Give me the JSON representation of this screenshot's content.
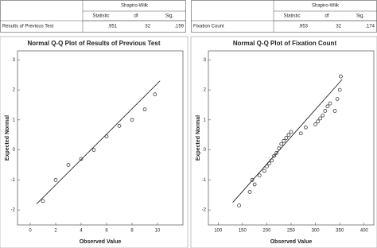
{
  "tables": [
    {
      "group_header": "Shapiro-Wilk",
      "columns": [
        "Statistic",
        "df",
        "Sig."
      ],
      "rows": [
        [
          "Results of Previous Test",
          ".951",
          "32",
          ".159"
        ]
      ]
    },
    {
      "group_header": "Shapiro-Wilk",
      "columns": [
        "Statistic",
        "df",
        "Sig."
      ],
      "rows": [
        [
          "Fixation Count",
          ".953",
          "32",
          ".174"
        ]
      ]
    }
  ],
  "chart_data": [
    {
      "type": "scatter",
      "title": "Normal Q-Q Plot of Results of Previous Test",
      "x_label": "Observed Value",
      "y_label": "Expected Normal",
      "x": [
        1,
        2,
        3,
        4,
        5,
        6,
        7,
        8,
        9,
        9.8
      ],
      "values": [
        -1.7,
        -1.0,
        -0.5,
        -0.3,
        0.0,
        0.45,
        0.8,
        1.0,
        1.35,
        1.85
      ],
      "reference_line": {
        "x": [
          0.5,
          10.2
        ],
        "y": [
          -1.8,
          2.3
        ]
      },
      "xlim": [
        -1,
        12
      ],
      "xticks": [
        0,
        2,
        4,
        6,
        8,
        10
      ],
      "ylim": [
        -2.5,
        3.3
      ],
      "yticks": [
        -2,
        -1,
        0,
        1,
        2,
        3
      ],
      "color": "#222222"
    },
    {
      "type": "scatter",
      "title": "Normal Q-Q Plot of Fixation Count",
      "x_label": "Observed Value",
      "y_label": "Expected Normal",
      "x": [
        143,
        165,
        170,
        175,
        185,
        195,
        200,
        205,
        210,
        215,
        220,
        225,
        230,
        235,
        240,
        245,
        250,
        270,
        280,
        300,
        305,
        310,
        315,
        320,
        325,
        330,
        340,
        345,
        350,
        352
      ],
      "values": [
        -1.85,
        -1.4,
        -1.0,
        -1.15,
        -0.85,
        -0.7,
        -0.55,
        -0.45,
        -0.35,
        -0.2,
        -0.1,
        0.05,
        0.2,
        0.3,
        0.4,
        0.5,
        0.6,
        0.55,
        0.75,
        0.85,
        0.95,
        1.05,
        1.15,
        1.3,
        1.45,
        1.55,
        1.3,
        1.7,
        2.0,
        2.45
      ],
      "reference_line": {
        "x": [
          130,
          355
        ],
        "y": [
          -1.75,
          2.35
        ]
      },
      "xlim": [
        80,
        420
      ],
      "xticks": [
        100,
        150,
        200,
        250,
        300,
        350,
        400
      ],
      "ylim": [
        -2.5,
        3.3
      ],
      "yticks": [
        -2,
        -1,
        0,
        1,
        2,
        3
      ],
      "color": "#222222"
    }
  ]
}
